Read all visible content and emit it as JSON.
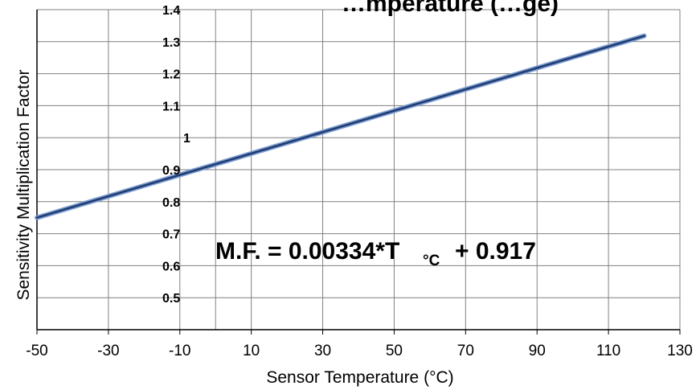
{
  "chart_data": {
    "type": "line",
    "title": "…mperature (…ge)",
    "xlabel": "Sensor Temperature (°C)",
    "ylabel": "Sensitivity Multiplication Factor",
    "xlim": [
      -50,
      130
    ],
    "ylim": [
      0.4,
      1.4
    ],
    "x_ticks": [
      "-50",
      "-30",
      "-10",
      "10",
      "30",
      "50",
      "70",
      "90",
      "110",
      "130"
    ],
    "y_ticks": [
      "0.5",
      "0.6",
      "0.7",
      "0.8",
      "0.9",
      "1",
      "1.1",
      "1.2",
      "1.3",
      "1.4"
    ],
    "grid": true,
    "series": [
      {
        "x": [
          -50,
          120
        ],
        "y": [
          0.75,
          1.318
        ]
      }
    ],
    "annotation": {
      "prefix": "M.F. = 0.00334*T",
      "unit": "°C",
      "suffix": "+ 0.917"
    },
    "colors": {
      "line": "#1f3a6e",
      "line_highlight": "#7a9bd0",
      "grid": "#808080"
    }
  }
}
